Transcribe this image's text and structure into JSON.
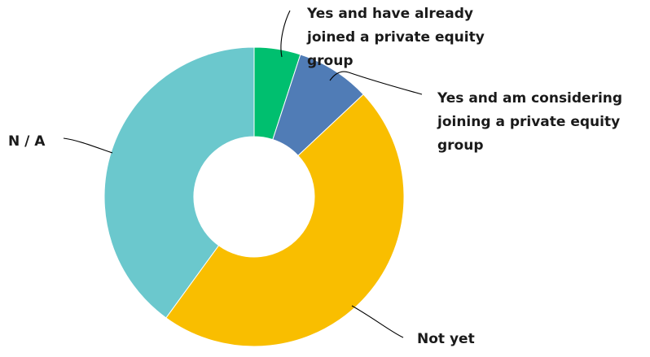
{
  "chart_data": {
    "type": "donut",
    "title": "",
    "start_angle_deg": 0,
    "direction": "clockwise",
    "slices": [
      {
        "key": "already",
        "label": "Yes and have already joined a private equity group",
        "label_lines": [
          "Yes and have already",
          "joined a private equity",
          "group"
        ],
        "value": 5,
        "color": "#00bf6f"
      },
      {
        "key": "considering",
        "label": "Yes and am considering joining a private equity group",
        "label_lines": [
          "Yes and am considering",
          "joining a private equity",
          "group"
        ],
        "value": 8,
        "color": "#507cb6"
      },
      {
        "key": "not_yet",
        "label": "Not yet",
        "label_lines": [
          "Not yet"
        ],
        "value": 47,
        "color": "#f9be00"
      },
      {
        "key": "na",
        "label": "N / A",
        "label_lines": [
          "N / A"
        ],
        "value": 40,
        "color": "#6bc8cd"
      }
    ]
  }
}
